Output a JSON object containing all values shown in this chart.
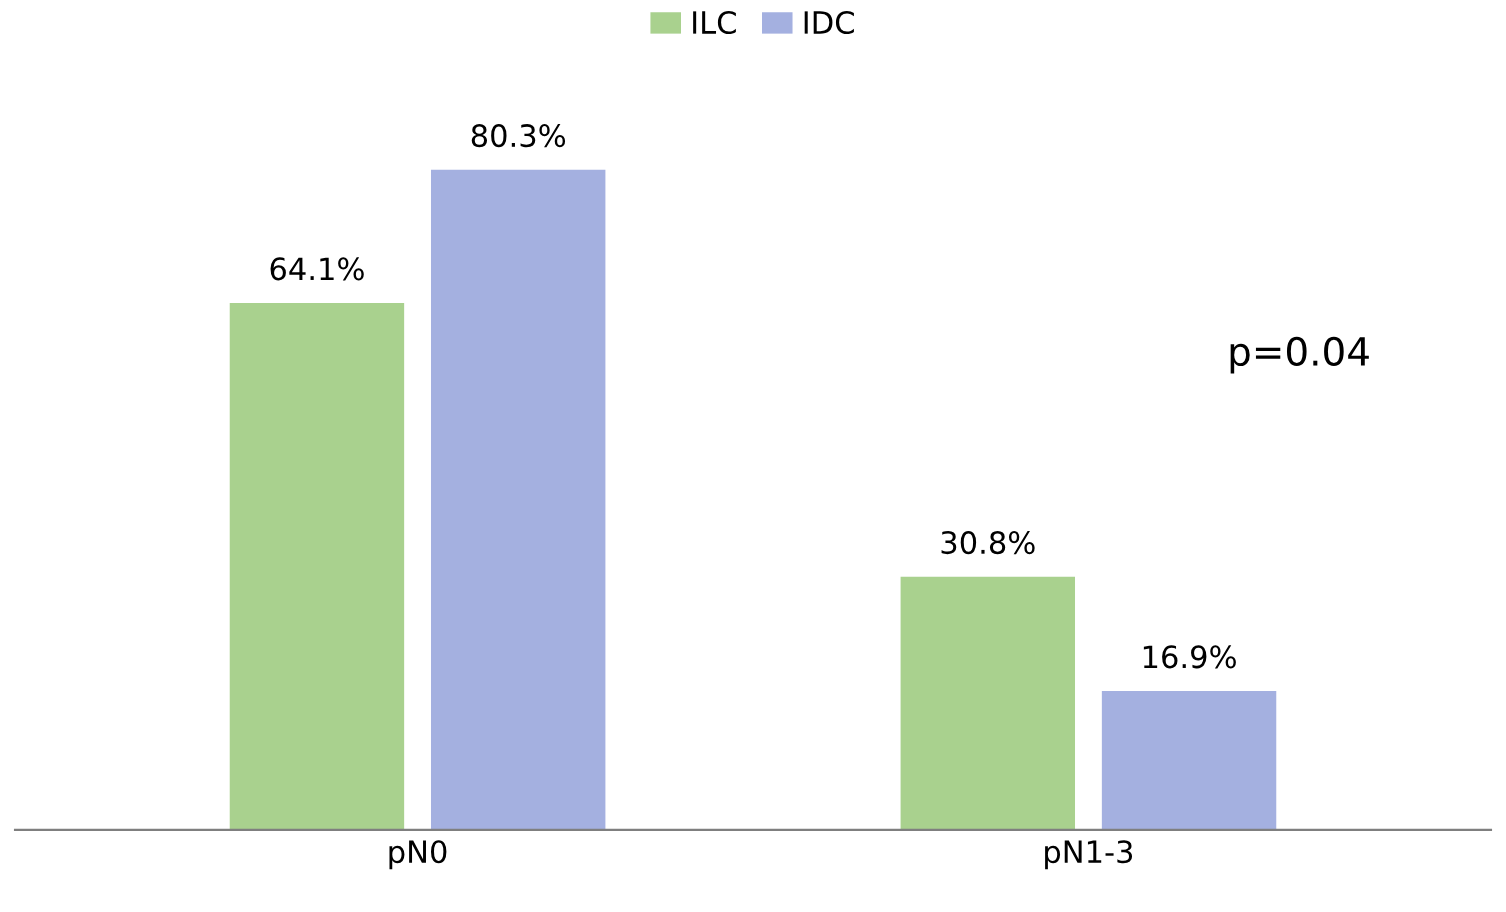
{
  "chart_data": {
    "type": "bar",
    "categories": [
      "pN0",
      "pN1-3"
    ],
    "series": [
      {
        "name": "ILC",
        "color": "#a9d18e",
        "values": [
          64.1,
          30.8
        ],
        "value_labels": [
          "64.1%",
          "30.8%"
        ]
      },
      {
        "name": "IDC",
        "color": "#a4b0e0",
        "values": [
          80.3,
          16.9
        ],
        "value_labels": [
          "80.3%",
          "16.9%"
        ]
      }
    ],
    "legend": "top",
    "grid": false,
    "annotations": [
      "p=0.04"
    ]
  }
}
